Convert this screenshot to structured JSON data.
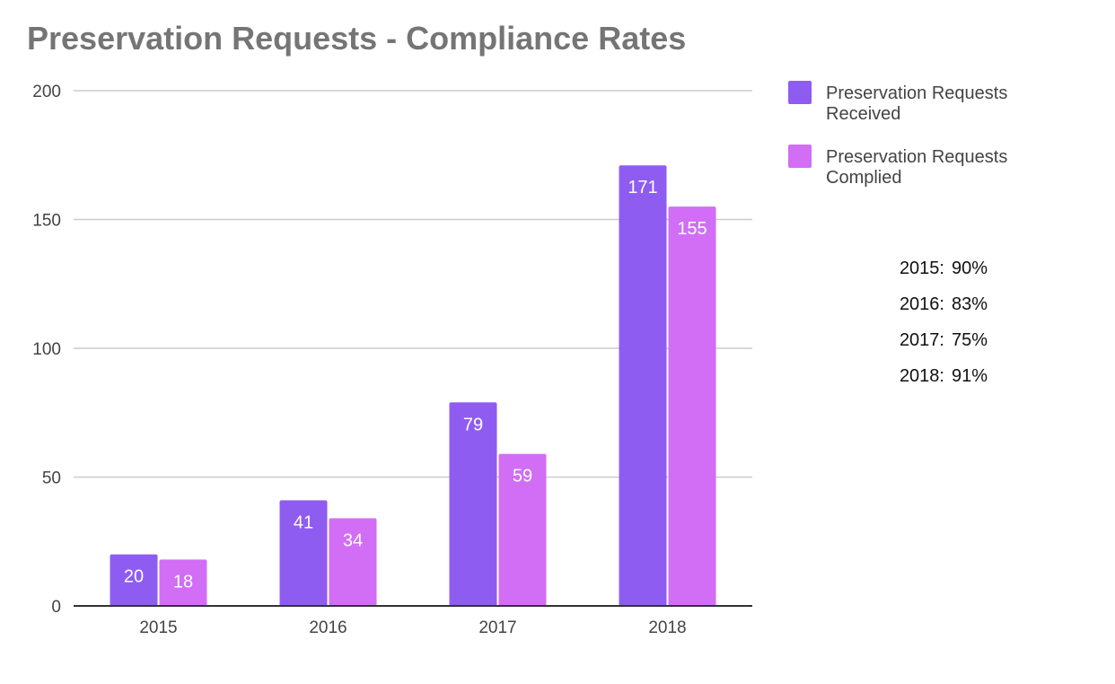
{
  "chart_data": {
    "type": "bar",
    "title": "Preservation Requests - Compliance Rates",
    "categories": [
      "2015",
      "2016",
      "2017",
      "2018"
    ],
    "series": [
      {
        "name": "Preservation Requests Received",
        "legend_lines": [
          "Preservation Requests",
          "Received"
        ],
        "color": "#8f5cf2",
        "values": [
          20,
          41,
          79,
          171
        ]
      },
      {
        "name": "Preservation Requests Complied",
        "legend_lines": [
          "Preservation Requests",
          "Complied"
        ],
        "color": "#d16ef5",
        "values": [
          18,
          34,
          59,
          155
        ]
      }
    ],
    "ylim": [
      0,
      200
    ],
    "yticks": [
      "0",
      "50",
      "100",
      "150",
      "200"
    ],
    "xlabel": "",
    "ylabel": "",
    "grid": true,
    "legend": "top-right",
    "data_labels": true
  },
  "compliance_rates": [
    {
      "year": "2015:",
      "rate": "90%"
    },
    {
      "year": "2016:",
      "rate": "83%"
    },
    {
      "year": "2017:",
      "rate": "75%"
    },
    {
      "year": "2018:",
      "rate": "91%"
    }
  ]
}
